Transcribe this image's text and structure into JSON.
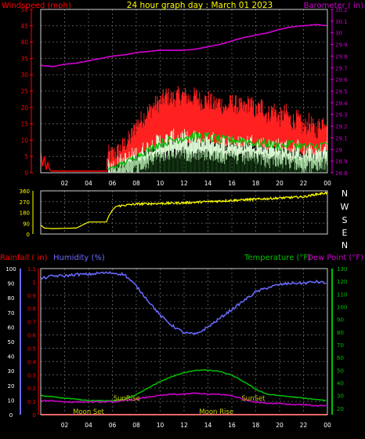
{
  "title": "24 hour graph day : March 01 2023",
  "colors": {
    "windspeed": "#ff0000",
    "gust": "#ff2020",
    "avgwind": "#00c000",
    "barometer": "#cc00cc",
    "direction": "#ffff00",
    "rain": "#ff0000",
    "humidity": "#6a6aff",
    "temperature": "#00c000",
    "dewpoint": "#cc00cc",
    "title": "#ffff00",
    "grid": "#555555"
  },
  "chart_data": [
    {
      "type": "line",
      "name": "wind-barometer",
      "left_axis_label": "Windspeed (mph)",
      "right_axis_label": "Barometer ( in)",
      "x_ticks": [
        "02",
        "04",
        "06",
        "08",
        "10",
        "12",
        "14",
        "16",
        "18",
        "20",
        "22",
        "00"
      ],
      "y_left_ticks": [
        "0",
        "5",
        "10",
        "15",
        "20",
        "25",
        "30",
        "35",
        "40",
        "45",
        "50"
      ],
      "ylim_left": [
        0,
        50
      ],
      "y_right_ticks": [
        "28.8",
        "28.9",
        "29",
        "29.1",
        "29.2",
        "29.3",
        "29.4",
        "29.5",
        "29.6",
        "29.7",
        "29.8",
        "29.9",
        "30",
        "30.1",
        "30.2"
      ],
      "ylim_right": [
        28.8,
        30.2
      ],
      "barometer": {
        "x": [
          0,
          1,
          2,
          3,
          4,
          5,
          6,
          7,
          8,
          9,
          10,
          11,
          12,
          13,
          14,
          15,
          16,
          17,
          18,
          19,
          20,
          21,
          22,
          23,
          24
        ],
        "y": [
          29.72,
          29.71,
          29.73,
          29.74,
          29.76,
          29.78,
          29.8,
          29.81,
          29.83,
          29.84,
          29.85,
          29.85,
          29.85,
          29.86,
          29.88,
          29.9,
          29.93,
          29.96,
          29.98,
          30.0,
          30.03,
          30.05,
          30.06,
          30.07,
          30.06
        ]
      },
      "gust": {
        "x": [
          0,
          0.3,
          0.6,
          1,
          4,
          5.5,
          5.6,
          6,
          6.5,
          7,
          7.5,
          8,
          8.5,
          9,
          9.5,
          10,
          10.5,
          11,
          11.5,
          12,
          12.5,
          13,
          13.5,
          14,
          14.5,
          15,
          15.5,
          16,
          16.5,
          17,
          17.5,
          18,
          18.5,
          19,
          19.5,
          20,
          20.5,
          21,
          21.5,
          22,
          22.5,
          23,
          23.5,
          24
        ],
        "y": [
          6,
          3,
          3,
          1,
          1,
          1,
          5,
          5,
          6,
          8,
          10,
          14,
          16,
          18,
          20,
          21,
          23,
          22,
          23,
          23,
          22,
          23,
          21,
          22,
          20,
          21,
          19,
          21,
          20,
          19,
          21,
          18,
          20,
          17,
          19,
          16,
          18,
          15,
          16,
          13,
          15,
          12,
          15,
          16
        ]
      },
      "windspeed": {
        "x": [
          0,
          0.3,
          0.6,
          1,
          4,
          5.5,
          5.6,
          6,
          6.5,
          7,
          7.5,
          8,
          8.5,
          9,
          9.5,
          10,
          10.5,
          11,
          11.5,
          12,
          12.5,
          13,
          13.5,
          14,
          14.5,
          15,
          15.5,
          16,
          16.5,
          17,
          17.5,
          18,
          18.5,
          19,
          19.5,
          20,
          20.5,
          21,
          21.5,
          22,
          22.5,
          23,
          23.5,
          24
        ],
        "y": [
          3,
          1,
          1,
          0,
          0,
          0,
          2,
          2,
          3,
          4,
          5,
          6,
          7,
          8,
          9,
          10,
          10,
          11,
          11,
          11,
          10,
          11,
          10,
          11,
          10,
          10,
          9,
          10,
          9,
          9,
          10,
          9,
          9,
          8,
          9,
          8,
          8,
          7,
          8,
          6,
          7,
          6,
          7,
          8
        ]
      },
      "avgwind": {
        "x": [
          5.6,
          7,
          8,
          9,
          10,
          11,
          12,
          13,
          14,
          15,
          16,
          17,
          18,
          19,
          20,
          21,
          22,
          23,
          24
        ],
        "y": [
          1,
          3,
          5,
          7,
          9,
          10,
          11,
          11,
          11,
          10,
          10,
          10,
          9,
          9,
          8,
          9,
          8,
          8,
          9
        ]
      }
    },
    {
      "type": "line",
      "name": "wind-direction",
      "y_ticks": [
        "360",
        "270",
        "180",
        "90",
        "0"
      ],
      "ylim": [
        0,
        360
      ],
      "compass": [
        "N",
        "W",
        "S",
        "E",
        "N"
      ],
      "direction": {
        "x": [
          0,
          0.3,
          1,
          3,
          4,
          5.5,
          5.7,
          6,
          6.3,
          7,
          8,
          10,
          12,
          14,
          16,
          18,
          20,
          22,
          23,
          24
        ],
        "y": [
          75,
          50,
          45,
          50,
          100,
          100,
          150,
          200,
          230,
          240,
          250,
          255,
          260,
          270,
          280,
          290,
          300,
          310,
          330,
          345
        ]
      }
    },
    {
      "type": "line",
      "name": "rain-humidity-temp",
      "rain_axis_label": "Rainfall ( in)",
      "humidity_axis_label": "Humidity (%)",
      "temp_axis_label": "Temperature (°F)",
      "dew_axis_label": "Dew Point (°F)",
      "x_ticks": [
        "02",
        "04",
        "06",
        "08",
        "10",
        "12",
        "14",
        "16",
        "18",
        "20",
        "22",
        "00"
      ],
      "humidity_ticks": [
        "0",
        "10",
        "20",
        "30",
        "40",
        "50",
        "60",
        "70",
        "80",
        "90",
        "100"
      ],
      "humidity_ylim": [
        0,
        100
      ],
      "rain_ticks": [
        "0",
        "0.1",
        "0.2",
        "0.3",
        "0.4",
        "0.5",
        "0.6",
        "0.7",
        "0.8",
        "0.9",
        "1",
        "1.1"
      ],
      "rain_ylim": [
        0,
        1.1
      ],
      "temp_ticks": [
        "20",
        "30",
        "40",
        "50",
        "60",
        "70",
        "80",
        "90",
        "100",
        "110",
        "120",
        "130"
      ],
      "temp_ylim": [
        15,
        130
      ],
      "humidity": {
        "x": [
          0,
          1,
          2,
          3,
          4,
          5,
          6,
          7,
          8,
          9,
          10,
          11,
          12,
          13,
          14,
          15,
          16,
          17,
          18,
          19,
          20,
          21,
          22,
          23,
          24
        ],
        "y": [
          93,
          95,
          95,
          96,
          96,
          97,
          97,
          96,
          88,
          78,
          68,
          61,
          56,
          55,
          60,
          66,
          72,
          78,
          84,
          87,
          89,
          90,
          90,
          91,
          90
        ]
      },
      "temperature": {
        "x": [
          0,
          1,
          2,
          3,
          4,
          5,
          6,
          7,
          8,
          9,
          10,
          11,
          12,
          13,
          14,
          15,
          16,
          17,
          18,
          19,
          20,
          21,
          22,
          23,
          24
        ],
        "y": [
          30,
          29,
          28,
          27,
          26,
          26,
          26,
          27,
          31,
          36,
          41,
          45,
          48,
          50,
          50,
          49,
          46,
          41,
          35,
          31,
          30,
          29,
          28,
          27,
          26
        ]
      },
      "dewpoint": {
        "x": [
          0,
          1,
          2,
          3,
          4,
          5,
          6,
          7,
          8,
          9,
          10,
          11,
          12,
          13,
          14,
          15,
          16,
          17,
          18,
          19,
          20,
          21,
          22,
          23,
          24
        ],
        "y": [
          26,
          26,
          25,
          25,
          25,
          25,
          25,
          26,
          27,
          29,
          30,
          31,
          31,
          32,
          31,
          31,
          30,
          27,
          25,
          24,
          24,
          23,
          23,
          22,
          22
        ]
      },
      "rain": {
        "x": [
          0,
          24
        ],
        "y": [
          0,
          0
        ]
      },
      "annotations": [
        {
          "label": "SunRise",
          "x": 7.2
        },
        {
          "label": "SunSet",
          "x": 17.8
        },
        {
          "label": "Moon Set",
          "x": 4.0
        },
        {
          "label": "Moon Rise",
          "x": 14.7
        }
      ]
    }
  ]
}
